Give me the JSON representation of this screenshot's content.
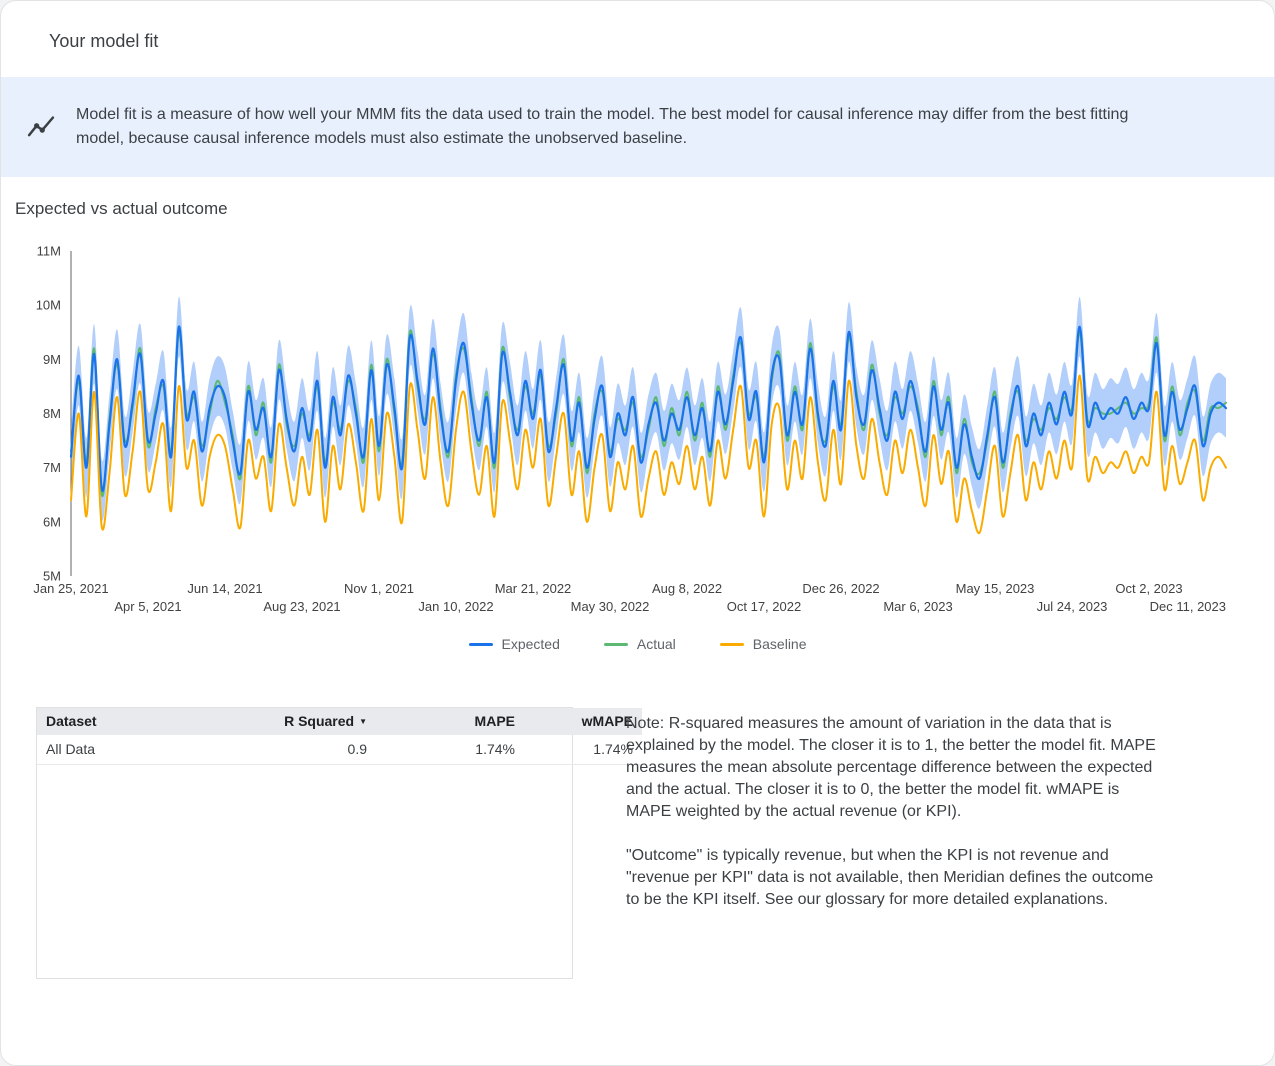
{
  "header": {
    "title": "Your model fit"
  },
  "banner": {
    "icon": "insights-icon",
    "background": "#e8f0fe",
    "text": "Model fit is a measure of how well your MMM fits the data used to train the model. The best model for causal inference may differ from the best fitting model, because causal inference models must also estimate the unobserved baseline."
  },
  "section": {
    "title": "Expected vs actual outcome"
  },
  "chart_data": {
    "type": "line",
    "title": "Expected vs actual outcome",
    "xlabel": "",
    "ylabel": "",
    "ylim": [
      5,
      11
    ],
    "unit": "M",
    "grid": false,
    "legend_position": "bottom",
    "y_ticks": [
      "5M",
      "6M",
      "7M",
      "8M",
      "9M",
      "10M",
      "11M"
    ],
    "y_tick_values": [
      5,
      6,
      7,
      8,
      9,
      10,
      11
    ],
    "x_ticks": [
      {
        "label": "Jan 25, 2021",
        "week": 0,
        "row": 1
      },
      {
        "label": "Apr 5, 2021",
        "week": 10,
        "row": 2
      },
      {
        "label": "Jun 14, 2021",
        "week": 20,
        "row": 1
      },
      {
        "label": "Aug 23, 2021",
        "week": 30,
        "row": 2
      },
      {
        "label": "Nov 1, 2021",
        "week": 40,
        "row": 1
      },
      {
        "label": "Jan 10, 2022",
        "week": 50,
        "row": 2
      },
      {
        "label": "Mar 21, 2022",
        "week": 60,
        "row": 1
      },
      {
        "label": "May 30, 2022",
        "week": 70,
        "row": 2
      },
      {
        "label": "Aug 8, 2022",
        "week": 80,
        "row": 1
      },
      {
        "label": "Oct 17, 2022",
        "week": 90,
        "row": 2
      },
      {
        "label": "Dec 26, 2022",
        "week": 100,
        "row": 1
      },
      {
        "label": "Mar 6, 2023",
        "week": 110,
        "row": 2
      },
      {
        "label": "May 15, 2023",
        "week": 120,
        "row": 1
      },
      {
        "label": "Jul 24, 2023",
        "week": 130,
        "row": 2
      },
      {
        "label": "Oct 2, 2023",
        "week": 140,
        "row": 1
      },
      {
        "label": "Dec 11, 2023",
        "week": 150,
        "row": 2
      }
    ],
    "band_halfwidth": 0.55,
    "band_color": "#aecbfa",
    "series": [
      {
        "name": "Expected",
        "color": "#1a73e8",
        "values": [
          7.2,
          8.7,
          7.0,
          9.1,
          6.6,
          7.8,
          9.0,
          7.4,
          8.2,
          9.1,
          7.5,
          8.0,
          8.6,
          7.2,
          9.6,
          7.9,
          8.4,
          7.3,
          8.1,
          8.5,
          8.3,
          7.5,
          6.9,
          8.4,
          7.7,
          8.1,
          7.2,
          8.8,
          7.9,
          7.3,
          8.1,
          7.5,
          8.6,
          7.0,
          8.3,
          7.6,
          8.7,
          8.0,
          7.2,
          8.8,
          7.4,
          8.9,
          8.1,
          7.0,
          9.4,
          8.6,
          7.8,
          9.2,
          8.0,
          7.3,
          8.6,
          9.3,
          8.2,
          7.5,
          8.3,
          7.1,
          9.1,
          8.4,
          7.6,
          8.6,
          7.9,
          8.8,
          7.3,
          8.1,
          8.9,
          7.5,
          8.2,
          7.0,
          7.9,
          8.5,
          7.2,
          8.0,
          7.6,
          8.3,
          7.1,
          7.8,
          8.2,
          7.5,
          8.0,
          7.7,
          8.3,
          7.6,
          8.1,
          7.3,
          8.4,
          7.8,
          8.6,
          9.4,
          7.9,
          8.4,
          7.1,
          8.7,
          9.0,
          7.6,
          8.4,
          7.8,
          9.2,
          8.0,
          7.4,
          8.6,
          7.7,
          9.5,
          8.3,
          7.8,
          8.8,
          8.1,
          7.5,
          8.4,
          7.9,
          8.6,
          8.0,
          7.3,
          8.5,
          7.7,
          8.2,
          7.0,
          7.8,
          7.2,
          6.8,
          7.6,
          8.3,
          7.1,
          7.9,
          8.5,
          7.4,
          8.0,
          7.6,
          8.2,
          7.8,
          8.4,
          8.0,
          9.6,
          7.8,
          8.2,
          7.9,
          8.1,
          8.0,
          8.3,
          7.9,
          8.2,
          8.1,
          9.3,
          7.6,
          8.4,
          7.7,
          8.1,
          8.5,
          7.4,
          8.0,
          8.2,
          8.1
        ]
      },
      {
        "name": "Actual",
        "color": "#5bb974",
        "values": [
          7.3,
          8.6,
          7.1,
          9.2,
          6.5,
          7.9,
          8.9,
          7.5,
          8.1,
          9.2,
          7.4,
          8.1,
          8.5,
          7.3,
          9.5,
          8.0,
          8.3,
          7.4,
          8.0,
          8.6,
          8.2,
          7.6,
          6.8,
          8.5,
          7.6,
          8.2,
          7.1,
          8.9,
          7.8,
          7.4,
          8.0,
          7.6,
          8.5,
          7.1,
          8.2,
          7.7,
          8.6,
          8.1,
          7.1,
          8.9,
          7.3,
          9.0,
          8.0,
          7.1,
          9.5,
          8.5,
          7.9,
          9.1,
          8.1,
          7.2,
          8.7,
          9.2,
          8.3,
          7.4,
          8.4,
          7.0,
          9.2,
          8.3,
          7.7,
          8.5,
          8.0,
          8.7,
          7.4,
          8.0,
          9.0,
          7.4,
          8.3,
          6.9,
          8.0,
          8.4,
          7.3,
          7.9,
          7.7,
          8.2,
          7.2,
          7.7,
          8.3,
          7.4,
          8.1,
          7.6,
          8.4,
          7.5,
          8.2,
          7.2,
          8.5,
          7.7,
          8.7,
          9.3,
          8.0,
          8.3,
          7.2,
          8.6,
          9.1,
          7.5,
          8.5,
          7.7,
          9.3,
          7.9,
          7.5,
          8.5,
          7.8,
          9.4,
          8.4,
          7.7,
          8.9,
          8.0,
          7.6,
          8.3,
          8.0,
          8.5,
          8.1,
          7.2,
          8.6,
          7.6,
          8.3,
          6.9,
          7.9,
          7.1,
          6.9,
          7.5,
          8.4,
          7.0,
          8.0,
          8.4,
          7.5,
          7.9,
          7.7,
          8.1,
          7.9,
          8.3,
          8.1,
          9.5,
          7.9,
          8.1,
          8.0,
          8.0,
          8.1,
          8.2,
          8.0,
          8.1,
          8.2,
          9.4,
          7.5,
          8.5,
          7.6,
          8.2,
          8.4,
          7.5,
          8.1,
          8.1,
          8.2
        ]
      },
      {
        "name": "Baseline",
        "color": "#f9ab00",
        "values": [
          6.4,
          8.0,
          6.1,
          8.4,
          5.9,
          6.9,
          8.3,
          6.5,
          7.3,
          8.4,
          6.6,
          7.1,
          7.8,
          6.2,
          8.5,
          7.0,
          7.5,
          6.3,
          7.2,
          7.6,
          7.4,
          6.6,
          5.9,
          7.5,
          6.8,
          7.2,
          6.2,
          7.8,
          7.0,
          6.3,
          7.2,
          6.5,
          7.7,
          6.0,
          7.4,
          6.6,
          7.8,
          7.1,
          6.2,
          7.9,
          6.4,
          8.0,
          7.2,
          6.0,
          8.5,
          7.7,
          6.8,
          8.3,
          7.1,
          6.3,
          7.7,
          8.4,
          7.3,
          6.5,
          7.4,
          6.1,
          8.2,
          7.5,
          6.6,
          7.7,
          7.0,
          7.9,
          6.3,
          7.2,
          8.0,
          6.5,
          7.3,
          6.0,
          7.0,
          7.6,
          6.2,
          7.1,
          6.6,
          7.4,
          6.1,
          6.8,
          7.3,
          6.5,
          7.1,
          6.7,
          7.4,
          6.6,
          7.2,
          6.3,
          7.5,
          6.8,
          7.7,
          8.5,
          7.0,
          7.5,
          6.1,
          7.8,
          8.1,
          6.6,
          7.5,
          6.8,
          8.3,
          7.1,
          6.4,
          7.7,
          6.7,
          8.6,
          7.4,
          6.8,
          7.9,
          7.1,
          6.5,
          7.5,
          6.9,
          7.7,
          7.0,
          6.3,
          7.6,
          6.7,
          7.3,
          6.0,
          6.8,
          6.2,
          5.8,
          6.6,
          7.4,
          6.1,
          6.9,
          7.6,
          6.4,
          7.1,
          6.6,
          7.3,
          6.8,
          7.5,
          7.0,
          8.7,
          6.8,
          7.2,
          6.9,
          7.1,
          7.0,
          7.3,
          6.9,
          7.2,
          7.1,
          8.4,
          6.6,
          7.4,
          6.7,
          7.1,
          7.5,
          6.4,
          7.0,
          7.2,
          7.0
        ]
      }
    ]
  },
  "table": {
    "columns": [
      {
        "label": "Dataset"
      },
      {
        "label": "R Squared",
        "sort_icon": "▼"
      },
      {
        "label": "MAPE"
      },
      {
        "label": "wMAPE"
      }
    ],
    "rows": [
      [
        "All Data",
        "0.9",
        "1.74%",
        "1.74%"
      ]
    ]
  },
  "note": {
    "paragraph1": "Note: R-squared measures the amount of variation in the data that is explained by the model. The closer it is to 1, the better the model fit. MAPE measures the mean absolute percentage difference between the expected and the actual. The closer it is to 0, the better the model fit. wMAPE is MAPE weighted by the actual revenue (or KPI).",
    "paragraph2": "\"Outcome\" is typically revenue, but when the KPI is not revenue and \"revenue per KPI\" data is not available, then Meridian defines the outcome to be the KPI itself. See our glossary for more detailed explanations."
  }
}
